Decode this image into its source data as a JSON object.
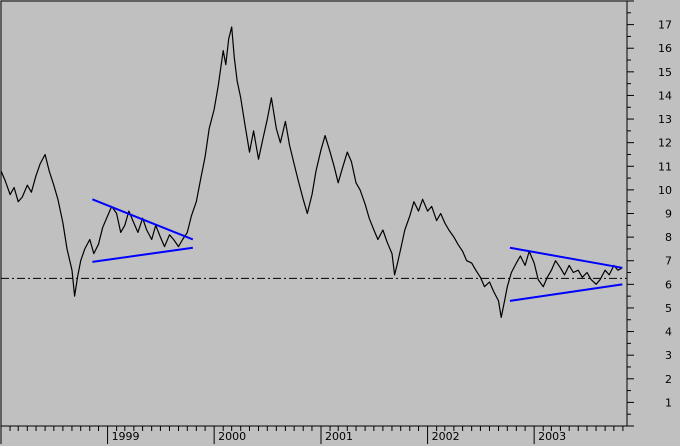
{
  "chart_data": {
    "type": "line",
    "title": "",
    "xlabel": "",
    "ylabel": "",
    "ylim": [
      0,
      18
    ],
    "xlim": [
      "1998-01-01",
      "2003-11-15"
    ],
    "y_ticks": [
      1,
      2,
      3,
      4,
      5,
      6,
      7,
      8,
      9,
      10,
      11,
      12,
      13,
      14,
      15,
      16,
      17
    ],
    "x_tick_labels": [
      "1999",
      "2000",
      "2001",
      "2002",
      "2003"
    ],
    "x_tick_dates": [
      "1999-01-01",
      "2000-01-01",
      "2001-01-01",
      "2002-01-01",
      "2003-01-01"
    ],
    "grid": false,
    "legend": "none",
    "colors": {
      "background": "#c0c0c0",
      "price": "#000000",
      "trendline": "#0000ff",
      "reference": "#000000"
    },
    "series": [
      {
        "points": [
          [
            "1998-01-01",
            10.8
          ],
          [
            "1998-01-15",
            10.4
          ],
          [
            "1998-02-01",
            9.8
          ],
          [
            "1998-02-15",
            10.1
          ],
          [
            "1998-03-01",
            9.5
          ],
          [
            "1998-03-15",
            9.7
          ],
          [
            "1998-04-01",
            10.2
          ],
          [
            "1998-04-15",
            9.9
          ],
          [
            "1998-05-01",
            10.6
          ],
          [
            "1998-05-15",
            11.1
          ],
          [
            "1998-06-01",
            11.5
          ],
          [
            "1998-06-15",
            10.8
          ],
          [
            "1998-07-01",
            10.2
          ],
          [
            "1998-07-15",
            9.6
          ],
          [
            "1998-08-01",
            8.6
          ],
          [
            "1998-08-15",
            7.5
          ],
          [
            "1998-09-01",
            6.6
          ],
          [
            "1998-09-10",
            5.5
          ],
          [
            "1998-09-20",
            6.3
          ],
          [
            "1998-10-01",
            7.0
          ],
          [
            "1998-10-15",
            7.5
          ],
          [
            "1998-11-01",
            7.9
          ],
          [
            "1998-11-15",
            7.3
          ],
          [
            "1998-12-01",
            7.7
          ],
          [
            "1998-12-15",
            8.4
          ],
          [
            "1999-01-01",
            8.9
          ],
          [
            "1999-01-15",
            9.3
          ],
          [
            "1999-02-01",
            9.0
          ],
          [
            "1999-02-15",
            8.2
          ],
          [
            "1999-03-01",
            8.5
          ],
          [
            "1999-03-15",
            9.1
          ],
          [
            "1999-04-01",
            8.6
          ],
          [
            "1999-04-15",
            8.2
          ],
          [
            "1999-05-01",
            8.8
          ],
          [
            "1999-05-15",
            8.3
          ],
          [
            "1999-06-01",
            7.9
          ],
          [
            "1999-06-15",
            8.5
          ],
          [
            "1999-07-01",
            8.0
          ],
          [
            "1999-07-15",
            7.6
          ],
          [
            "1999-08-01",
            8.1
          ],
          [
            "1999-08-15",
            7.9
          ],
          [
            "1999-09-01",
            7.6
          ],
          [
            "1999-09-15",
            7.9
          ],
          [
            "1999-10-01",
            8.2
          ],
          [
            "1999-10-15",
            8.9
          ],
          [
            "1999-11-01",
            9.5
          ],
          [
            "1999-11-15",
            10.4
          ],
          [
            "1999-12-01",
            11.4
          ],
          [
            "1999-12-15",
            12.6
          ],
          [
            "2000-01-01",
            13.4
          ],
          [
            "2000-01-15",
            14.4
          ],
          [
            "2000-02-01",
            15.9
          ],
          [
            "2000-02-10",
            15.3
          ],
          [
            "2000-02-20",
            16.4
          ],
          [
            "2000-03-01",
            16.9
          ],
          [
            "2000-03-10",
            15.6
          ],
          [
            "2000-03-20",
            14.6
          ],
          [
            "2000-04-01",
            13.9
          ],
          [
            "2000-04-15",
            12.8
          ],
          [
            "2000-05-01",
            11.6
          ],
          [
            "2000-05-15",
            12.5
          ],
          [
            "2000-06-01",
            11.3
          ],
          [
            "2000-06-15",
            12.1
          ],
          [
            "2000-07-01",
            13.0
          ],
          [
            "2000-07-15",
            13.9
          ],
          [
            "2000-08-01",
            12.6
          ],
          [
            "2000-08-15",
            12.0
          ],
          [
            "2000-09-01",
            12.9
          ],
          [
            "2000-09-15",
            11.9
          ],
          [
            "2000-10-01",
            11.1
          ],
          [
            "2000-10-15",
            10.4
          ],
          [
            "2000-11-01",
            9.6
          ],
          [
            "2000-11-15",
            9.0
          ],
          [
            "2000-12-01",
            9.8
          ],
          [
            "2000-12-15",
            10.8
          ],
          [
            "2001-01-01",
            11.7
          ],
          [
            "2001-01-15",
            12.3
          ],
          [
            "2001-02-01",
            11.6
          ],
          [
            "2001-02-15",
            11.0
          ],
          [
            "2001-03-01",
            10.3
          ],
          [
            "2001-03-15",
            10.9
          ],
          [
            "2001-04-01",
            11.6
          ],
          [
            "2001-04-15",
            11.2
          ],
          [
            "2001-05-01",
            10.3
          ],
          [
            "2001-05-15",
            10.0
          ],
          [
            "2001-06-01",
            9.4
          ],
          [
            "2001-06-15",
            8.8
          ],
          [
            "2001-07-01",
            8.3
          ],
          [
            "2001-07-15",
            7.9
          ],
          [
            "2001-08-01",
            8.3
          ],
          [
            "2001-08-15",
            7.8
          ],
          [
            "2001-09-01",
            7.3
          ],
          [
            "2001-09-10",
            6.4
          ],
          [
            "2001-09-20",
            6.9
          ],
          [
            "2001-10-01",
            7.5
          ],
          [
            "2001-10-15",
            8.3
          ],
          [
            "2001-11-01",
            8.9
          ],
          [
            "2001-11-15",
            9.5
          ],
          [
            "2001-12-01",
            9.1
          ],
          [
            "2001-12-15",
            9.6
          ],
          [
            "2002-01-01",
            9.1
          ],
          [
            "2002-01-15",
            9.3
          ],
          [
            "2002-02-01",
            8.7
          ],
          [
            "2002-02-15",
            9.0
          ],
          [
            "2002-03-01",
            8.6
          ],
          [
            "2002-03-15",
            8.3
          ],
          [
            "2002-04-01",
            8.0
          ],
          [
            "2002-04-15",
            7.7
          ],
          [
            "2002-05-01",
            7.4
          ],
          [
            "2002-05-15",
            7.0
          ],
          [
            "2002-06-01",
            6.9
          ],
          [
            "2002-06-15",
            6.6
          ],
          [
            "2002-07-01",
            6.3
          ],
          [
            "2002-07-15",
            5.9
          ],
          [
            "2002-08-01",
            6.1
          ],
          [
            "2002-08-15",
            5.7
          ],
          [
            "2002-09-01",
            5.3
          ],
          [
            "2002-09-10",
            4.6
          ],
          [
            "2002-09-20",
            5.2
          ],
          [
            "2002-10-01",
            5.9
          ],
          [
            "2002-10-15",
            6.5
          ],
          [
            "2002-11-01",
            6.9
          ],
          [
            "2002-11-15",
            7.2
          ],
          [
            "2002-12-01",
            6.8
          ],
          [
            "2002-12-15",
            7.4
          ],
          [
            "2003-01-01",
            6.9
          ],
          [
            "2003-01-15",
            6.2
          ],
          [
            "2003-02-01",
            5.9
          ],
          [
            "2003-02-15",
            6.3
          ],
          [
            "2003-03-01",
            6.6
          ],
          [
            "2003-03-15",
            7.0
          ],
          [
            "2003-04-01",
            6.7
          ],
          [
            "2003-04-15",
            6.4
          ],
          [
            "2003-05-01",
            6.8
          ],
          [
            "2003-05-15",
            6.5
          ],
          [
            "2003-06-01",
            6.6
          ],
          [
            "2003-06-15",
            6.3
          ],
          [
            "2003-07-01",
            6.5
          ],
          [
            "2003-07-15",
            6.2
          ],
          [
            "2003-08-01",
            6.0
          ],
          [
            "2003-08-15",
            6.2
          ],
          [
            "2003-09-01",
            6.6
          ],
          [
            "2003-09-15",
            6.4
          ],
          [
            "2003-10-01",
            6.8
          ],
          [
            "2003-10-15",
            6.6
          ],
          [
            "2003-10-30",
            6.7
          ]
        ]
      }
    ],
    "trendlines": [
      {
        "from": [
          "1998-11-10",
          9.6
        ],
        "to": [
          "1999-10-20",
          7.9
        ]
      },
      {
        "from": [
          "1998-11-10",
          6.95
        ],
        "to": [
          "1999-10-20",
          7.55
        ]
      },
      {
        "from": [
          "2002-10-10",
          7.55
        ],
        "to": [
          "2003-10-30",
          6.7
        ]
      },
      {
        "from": [
          "2002-10-10",
          5.3
        ],
        "to": [
          "2003-10-30",
          6.0
        ]
      }
    ],
    "reference_line": {
      "y": 6.25,
      "style": "dash-dot"
    }
  }
}
